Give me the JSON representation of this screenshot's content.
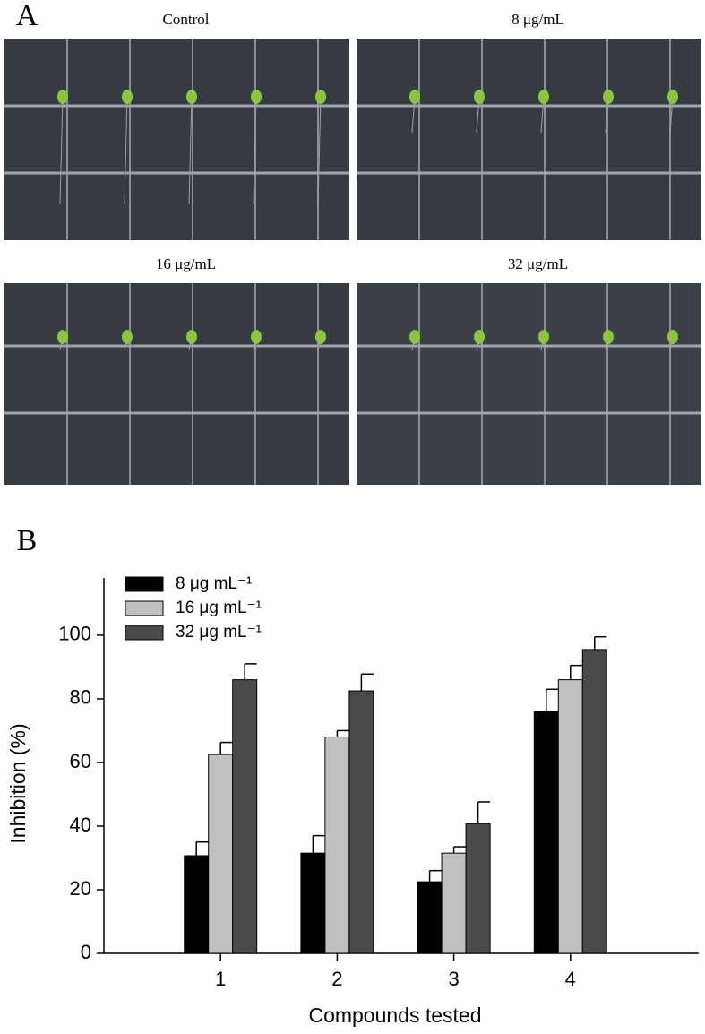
{
  "panel_a": {
    "label": "A",
    "titles": [
      "Control",
      "8 μg/mL",
      "16 μg/mL",
      "32 μg/mL"
    ]
  },
  "panel_b": {
    "label": "B"
  },
  "chart_data": {
    "type": "bar",
    "x_label": "Compounds tested",
    "y_label": "Inhibition (%)",
    "categories": [
      "1",
      "2",
      "3",
      "4"
    ],
    "series": [
      {
        "name": "8 μg mL⁻¹",
        "color": "#000000",
        "values": [
          30.7,
          31.5,
          22.5,
          76
        ],
        "errors": [
          4.3,
          5.5,
          3.5,
          7
        ]
      },
      {
        "name": "16 μg mL⁻¹",
        "color": "#c0c0c0",
        "values": [
          62.5,
          68,
          31.5,
          86
        ],
        "errors": [
          3.8,
          2,
          2,
          4.5
        ]
      },
      {
        "name": "32 μg mL⁻¹",
        "color": "#4a4a4a",
        "values": [
          86,
          82.5,
          40.8,
          95.5
        ],
        "errors": [
          5,
          5.3,
          6.8,
          4
        ]
      }
    ],
    "ylim": [
      0,
      118
    ],
    "yticks": [
      0,
      20,
      40,
      60,
      80,
      100
    ],
    "grid": false,
    "legend": "top-left"
  }
}
